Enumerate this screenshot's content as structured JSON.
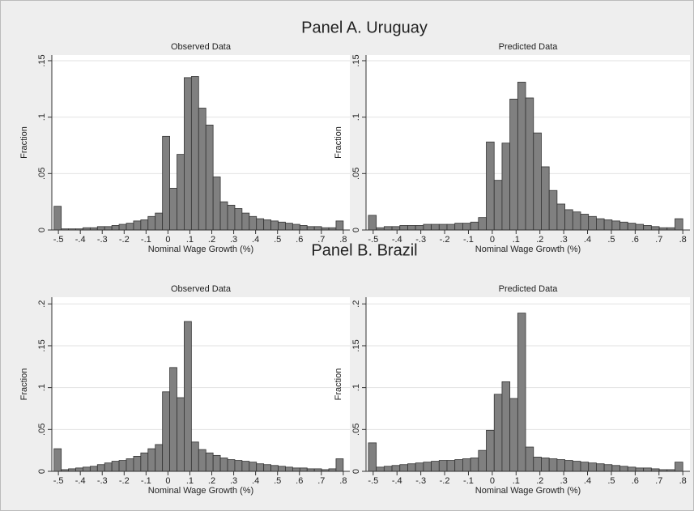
{
  "panels": [
    "Panel A. Uruguay",
    "Panel B. Brazil"
  ],
  "chart_data": [
    {
      "type": "histogram",
      "title": "Observed Data",
      "x_label": "Nominal Wage Growth (%)",
      "y_label": "Fraction",
      "color": "#808080",
      "grid": true,
      "bins": [
        -0.52,
        -0.487,
        -0.454,
        -0.421,
        -0.388,
        -0.355,
        -0.322,
        -0.289,
        -0.256,
        -0.223,
        -0.19,
        -0.157,
        -0.124,
        -0.091,
        -0.058,
        -0.025,
        0.008,
        0.041,
        0.074,
        0.107,
        0.14,
        0.173,
        0.206,
        0.239,
        0.272,
        0.305,
        0.338,
        0.371,
        0.404,
        0.437,
        0.47,
        0.503,
        0.536,
        0.569,
        0.602,
        0.635,
        0.668,
        0.701,
        0.734,
        0.767,
        0.8
      ],
      "values": [
        0.021,
        0.001,
        0.001,
        0.001,
        0.002,
        0.002,
        0.003,
        0.003,
        0.004,
        0.005,
        0.006,
        0.008,
        0.009,
        0.012,
        0.015,
        0.083,
        0.037,
        0.067,
        0.135,
        0.136,
        0.108,
        0.093,
        0.047,
        0.025,
        0.022,
        0.019,
        0.015,
        0.012,
        0.01,
        0.009,
        0.008,
        0.007,
        0.006,
        0.005,
        0.004,
        0.003,
        0.003,
        0.002,
        0.002,
        0.008
      ],
      "xlim": [
        -0.53,
        0.83
      ],
      "xticks": [
        {
          "value": -0.5,
          "label": "-.5"
        },
        {
          "value": -0.4,
          "label": "-.4"
        },
        {
          "value": -0.3,
          "label": "-.3"
        },
        {
          "value": -0.2,
          "label": "-.2"
        },
        {
          "value": -0.1,
          "label": "-.1"
        },
        0,
        {
          "value": 0.1,
          "label": ".1"
        },
        {
          "value": 0.2,
          "label": ".2"
        },
        {
          "value": 0.3,
          "label": ".3"
        },
        {
          "value": 0.4,
          "label": ".4"
        },
        {
          "value": 0.5,
          "label": ".5"
        },
        {
          "value": 0.6,
          "label": ".6"
        },
        {
          "value": 0.7,
          "label": ".7"
        },
        {
          "value": 0.8,
          "label": ".8"
        }
      ],
      "ylim": [
        0,
        0.155
      ],
      "yticks": [
        0,
        {
          "value": 0.05,
          "label": ".05"
        },
        {
          "value": 0.1,
          "label": ".1"
        },
        {
          "value": 0.15,
          "label": ".15"
        }
      ]
    },
    {
      "type": "histogram",
      "title": "Predicted Data",
      "x_label": "Nominal Wage Growth (%)",
      "y_label": "Fraction",
      "color": "#808080",
      "grid": true,
      "bins": [
        -0.52,
        -0.487,
        -0.454,
        -0.421,
        -0.388,
        -0.355,
        -0.322,
        -0.289,
        -0.256,
        -0.223,
        -0.19,
        -0.157,
        -0.124,
        -0.091,
        -0.058,
        -0.025,
        0.008,
        0.041,
        0.074,
        0.107,
        0.14,
        0.173,
        0.206,
        0.239,
        0.272,
        0.305,
        0.338,
        0.371,
        0.404,
        0.437,
        0.47,
        0.503,
        0.536,
        0.569,
        0.602,
        0.635,
        0.668,
        0.701,
        0.734,
        0.767,
        0.8
      ],
      "values": [
        0.013,
        0.002,
        0.003,
        0.003,
        0.004,
        0.004,
        0.004,
        0.005,
        0.005,
        0.005,
        0.005,
        0.006,
        0.006,
        0.007,
        0.011,
        0.078,
        0.044,
        0.077,
        0.116,
        0.131,
        0.117,
        0.086,
        0.056,
        0.035,
        0.023,
        0.018,
        0.016,
        0.014,
        0.012,
        0.01,
        0.009,
        0.008,
        0.007,
        0.006,
        0.005,
        0.004,
        0.003,
        0.002,
        0.002,
        0.01
      ],
      "xlim": [
        -0.53,
        0.83
      ],
      "xticks": [
        {
          "value": -0.5,
          "label": "-.5"
        },
        {
          "value": -0.4,
          "label": "-.4"
        },
        {
          "value": -0.3,
          "label": "-.3"
        },
        {
          "value": -0.2,
          "label": "-.2"
        },
        {
          "value": -0.1,
          "label": "-.1"
        },
        0,
        {
          "value": 0.1,
          "label": ".1"
        },
        {
          "value": 0.2,
          "label": ".2"
        },
        {
          "value": 0.3,
          "label": ".3"
        },
        {
          "value": 0.4,
          "label": ".4"
        },
        {
          "value": 0.5,
          "label": ".5"
        },
        {
          "value": 0.6,
          "label": ".6"
        },
        {
          "value": 0.7,
          "label": ".7"
        },
        {
          "value": 0.8,
          "label": ".8"
        }
      ],
      "ylim": [
        0,
        0.155
      ],
      "yticks": [
        0,
        {
          "value": 0.05,
          "label": ".05"
        },
        {
          "value": 0.1,
          "label": ".1"
        },
        {
          "value": 0.15,
          "label": ".15"
        }
      ]
    },
    {
      "type": "histogram",
      "title": "Observed Data",
      "x_label": "Nominal Wage Growth (%)",
      "y_label": "Fraction",
      "color": "#808080",
      "grid": true,
      "bins": [
        -0.52,
        -0.487,
        -0.454,
        -0.421,
        -0.388,
        -0.355,
        -0.322,
        -0.289,
        -0.256,
        -0.223,
        -0.19,
        -0.157,
        -0.124,
        -0.091,
        -0.058,
        -0.025,
        0.008,
        0.041,
        0.074,
        0.107,
        0.14,
        0.173,
        0.206,
        0.239,
        0.272,
        0.305,
        0.338,
        0.371,
        0.404,
        0.437,
        0.47,
        0.503,
        0.536,
        0.569,
        0.602,
        0.635,
        0.668,
        0.701,
        0.734,
        0.767,
        0.8
      ],
      "values": [
        0.027,
        0.002,
        0.003,
        0.004,
        0.005,
        0.006,
        0.008,
        0.01,
        0.012,
        0.013,
        0.015,
        0.018,
        0.022,
        0.027,
        0.032,
        0.095,
        0.124,
        0.088,
        0.179,
        0.035,
        0.026,
        0.022,
        0.019,
        0.016,
        0.014,
        0.013,
        0.012,
        0.011,
        0.009,
        0.008,
        0.007,
        0.006,
        0.005,
        0.004,
        0.004,
        0.003,
        0.003,
        0.002,
        0.003,
        0.015
      ],
      "xlim": [
        -0.53,
        0.83
      ],
      "xticks": [
        {
          "value": -0.5,
          "label": "-.5"
        },
        {
          "value": -0.4,
          "label": "-.4"
        },
        {
          "value": -0.3,
          "label": "-.3"
        },
        {
          "value": -0.2,
          "label": "-.2"
        },
        {
          "value": -0.1,
          "label": "-.1"
        },
        0,
        {
          "value": 0.1,
          "label": ".1"
        },
        {
          "value": 0.2,
          "label": ".2"
        },
        {
          "value": 0.3,
          "label": ".3"
        },
        {
          "value": 0.4,
          "label": ".4"
        },
        {
          "value": 0.5,
          "label": ".5"
        },
        {
          "value": 0.6,
          "label": ".6"
        },
        {
          "value": 0.7,
          "label": ".7"
        },
        {
          "value": 0.8,
          "label": ".8"
        }
      ],
      "ylim": [
        0,
        0.208
      ],
      "yticks": [
        0,
        {
          "value": 0.05,
          "label": ".05"
        },
        {
          "value": 0.1,
          "label": ".1"
        },
        {
          "value": 0.15,
          "label": ".15"
        },
        {
          "value": 0.2,
          "label": ".2"
        }
      ]
    },
    {
      "type": "histogram",
      "title": "Predicted Data",
      "x_label": "Nominal Wage Growth (%)",
      "y_label": "Fraction",
      "color": "#808080",
      "grid": true,
      "bins": [
        -0.52,
        -0.487,
        -0.454,
        -0.421,
        -0.388,
        -0.355,
        -0.322,
        -0.289,
        -0.256,
        -0.223,
        -0.19,
        -0.157,
        -0.124,
        -0.091,
        -0.058,
        -0.025,
        0.008,
        0.041,
        0.074,
        0.107,
        0.14,
        0.173,
        0.206,
        0.239,
        0.272,
        0.305,
        0.338,
        0.371,
        0.404,
        0.437,
        0.47,
        0.503,
        0.536,
        0.569,
        0.602,
        0.635,
        0.668,
        0.701,
        0.734,
        0.767,
        0.8
      ],
      "values": [
        0.034,
        0.005,
        0.006,
        0.007,
        0.008,
        0.009,
        0.01,
        0.011,
        0.012,
        0.013,
        0.013,
        0.014,
        0.015,
        0.016,
        0.025,
        0.049,
        0.092,
        0.107,
        0.087,
        0.189,
        0.029,
        0.017,
        0.016,
        0.015,
        0.014,
        0.013,
        0.012,
        0.011,
        0.01,
        0.009,
        0.008,
        0.007,
        0.006,
        0.005,
        0.004,
        0.004,
        0.003,
        0.002,
        0.002,
        0.011
      ],
      "xlim": [
        -0.53,
        0.83
      ],
      "xticks": [
        {
          "value": -0.5,
          "label": "-.5"
        },
        {
          "value": -0.4,
          "label": "-.4"
        },
        {
          "value": -0.3,
          "label": "-.3"
        },
        {
          "value": -0.2,
          "label": "-.2"
        },
        {
          "value": -0.1,
          "label": "-.1"
        },
        0,
        {
          "value": 0.1,
          "label": ".1"
        },
        {
          "value": 0.2,
          "label": ".2"
        },
        {
          "value": 0.3,
          "label": ".3"
        },
        {
          "value": 0.4,
          "label": ".4"
        },
        {
          "value": 0.5,
          "label": ".5"
        },
        {
          "value": 0.6,
          "label": ".6"
        },
        {
          "value": 0.7,
          "label": ".7"
        },
        {
          "value": 0.8,
          "label": ".8"
        }
      ],
      "ylim": [
        0,
        0.208
      ],
      "yticks": [
        0,
        {
          "value": 0.05,
          "label": ".05"
        },
        {
          "value": 0.1,
          "label": ".1"
        },
        {
          "value": 0.15,
          "label": ".15"
        },
        {
          "value": 0.2,
          "label": ".2"
        }
      ]
    }
  ]
}
